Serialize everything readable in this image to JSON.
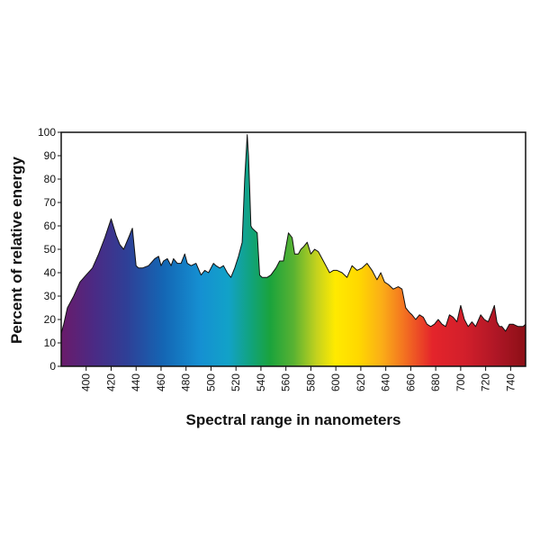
{
  "chart_data": {
    "type": "area",
    "title": "",
    "xlabel": "Spectral range in nanometers",
    "ylabel": "Percent of relative energy",
    "xlim": [
      380,
      752
    ],
    "ylim": [
      0,
      100
    ],
    "grid": false,
    "legend": "none",
    "x_ticks": [
      400,
      420,
      440,
      460,
      480,
      500,
      520,
      540,
      560,
      580,
      600,
      620,
      640,
      660,
      680,
      700,
      720,
      740
    ],
    "y_ticks": [
      0,
      10,
      20,
      30,
      40,
      50,
      60,
      70,
      80,
      90,
      100
    ],
    "fill": "visible spectrum gradient (violet to deep red)",
    "series": [
      {
        "x": [
          380,
          382,
          385,
          390,
          395,
          400,
          405,
          410,
          415,
          420,
          424,
          427,
          430,
          434,
          437,
          440,
          442,
          445,
          450,
          455,
          458,
          460,
          462,
          465,
          468,
          470,
          473,
          476,
          479,
          481,
          484,
          488,
          492,
          495,
          498,
          502,
          504,
          507,
          510,
          513,
          516,
          519,
          522,
          525,
          527,
          529,
          530,
          531,
          532,
          533,
          535,
          537,
          539,
          541,
          545,
          548,
          552,
          555,
          558,
          562,
          565,
          567,
          570,
          572,
          574,
          577,
          580,
          583,
          586,
          589,
          592,
          595,
          598,
          601,
          605,
          609,
          613,
          617,
          621,
          625,
          629,
          633,
          636,
          639,
          642,
          646,
          650,
          653,
          656,
          659,
          661,
          664,
          667,
          670,
          673,
          676,
          679,
          682,
          685,
          688,
          691,
          694,
          697,
          700,
          703,
          706,
          709,
          712,
          716,
          719,
          722,
          725,
          727,
          729,
          731,
          733,
          736,
          739,
          742,
          746,
          750,
          752
        ],
        "y": [
          14,
          18,
          25,
          30,
          36,
          39,
          42,
          48,
          55,
          63,
          56,
          52,
          50,
          55,
          59,
          43,
          42,
          42,
          43,
          46,
          47,
          43,
          45,
          46,
          43,
          46,
          44,
          44,
          48,
          44,
          43,
          44,
          39,
          41,
          40,
          44,
          43,
          42,
          43,
          40,
          38,
          42,
          47,
          53,
          80,
          99,
          90,
          75,
          60,
          59,
          58,
          57,
          39,
          38,
          38,
          39,
          42,
          45,
          45,
          57,
          55,
          48,
          48,
          50,
          51,
          53,
          48,
          50,
          49,
          46,
          43,
          40,
          41,
          41,
          40,
          38,
          43,
          41,
          42,
          44,
          41,
          37,
          40,
          36,
          35,
          33,
          34,
          33,
          25,
          23,
          22,
          20,
          22,
          21,
          18,
          17,
          18,
          20,
          18,
          17,
          22,
          21,
          19,
          26,
          20,
          17,
          19,
          17,
          22,
          20,
          19,
          23,
          26,
          19,
          17,
          17,
          15,
          18,
          18,
          17,
          17,
          18
        ]
      }
    ]
  }
}
